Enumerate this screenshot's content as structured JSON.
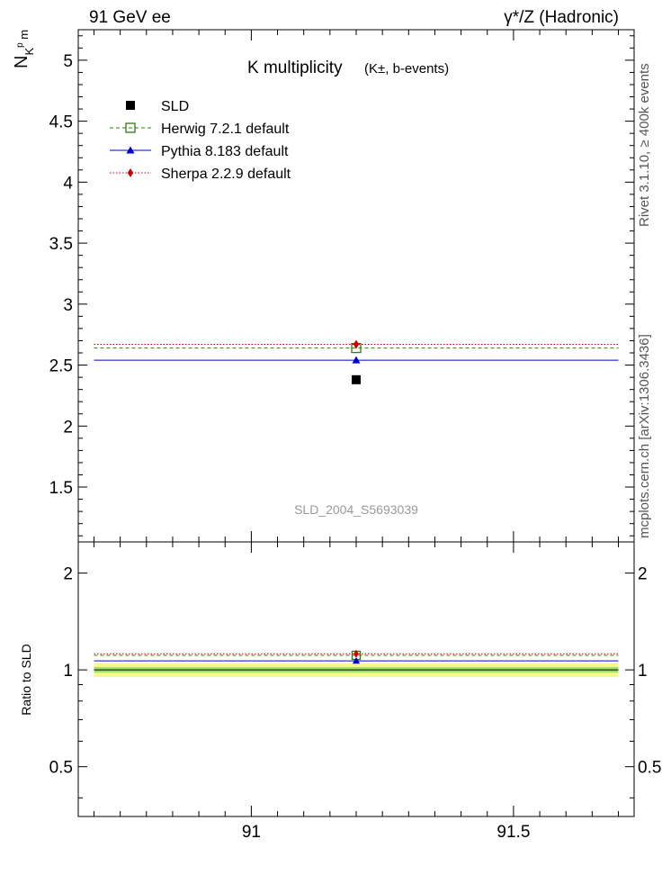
{
  "header": {
    "left": "91 GeV ee",
    "right": "γ*/Z (Hadronic)"
  },
  "side_text": {
    "rivet": "Rivet 3.1.10, ≥ 400k events",
    "mcplots": "mcplots.cern.ch [arXiv:1306.3436]"
  },
  "colors": {
    "data": "#000000",
    "herwig": "#2e7d12",
    "pythia": "#0000cc",
    "sherpa": "#cc0000",
    "band_inner": "#9be36b",
    "band_outer": "#f6f98a"
  },
  "chart_data": [
    {
      "type": "scatter",
      "panel": "main",
      "title": "K multiplicity",
      "title_suffix": "(K±, b-events)",
      "ylabel": "N_K^p_m",
      "watermark": "SLD_2004_S5693039",
      "xlim": [
        90.67,
        91.73
      ],
      "ylim": [
        1.05,
        5.25
      ],
      "yticks": [
        1.5,
        2,
        2.5,
        3,
        3.5,
        4,
        4.5,
        5
      ],
      "ytick_labels": [
        "1.5",
        "2",
        "2.5",
        "3",
        "3.5",
        "4",
        "4.5",
        "5"
      ],
      "legend_position": "top-left",
      "series": [
        {
          "name": "SLD",
          "style": "data",
          "x": [
            91.2
          ],
          "y": [
            2.38
          ],
          "xrange": [
            90.7,
            91.7
          ]
        },
        {
          "name": "Herwig 7.2.1 default",
          "style": "herwig",
          "x": [
            91.2
          ],
          "y": [
            2.64
          ],
          "xrange": [
            90.7,
            91.7
          ]
        },
        {
          "name": "Pythia 8.183 default",
          "style": "pythia",
          "x": [
            91.2
          ],
          "y": [
            2.54
          ],
          "xrange": [
            90.7,
            91.7
          ]
        },
        {
          "name": "Sherpa 2.2.9 default",
          "style": "sherpa",
          "x": [
            91.2
          ],
          "y": [
            2.67
          ],
          "xrange": [
            90.7,
            91.7
          ]
        }
      ]
    },
    {
      "type": "scatter",
      "panel": "ratio",
      "ylabel": "Ratio to SLD",
      "xlim": [
        90.67,
        91.73
      ],
      "ylim": [
        0.35,
        2.5
      ],
      "yscale": "log",
      "yticks": [
        0.5,
        1,
        2
      ],
      "ytick_labels": [
        "0.5",
        "1",
        "2"
      ],
      "xticks": [
        91,
        91.5
      ],
      "xtick_labels": [
        "91",
        "91.5"
      ],
      "band_outer": [
        0.95,
        1.05
      ],
      "band_inner": [
        0.98,
        1.02
      ],
      "series": [
        {
          "name": "Herwig 7.2.1 default",
          "style": "herwig",
          "x": [
            91.2
          ],
          "y": [
            1.11
          ]
        },
        {
          "name": "Pythia 8.183 default",
          "style": "pythia",
          "x": [
            91.2
          ],
          "y": [
            1.067
          ]
        },
        {
          "name": "Sherpa 2.2.9 default",
          "style": "sherpa",
          "x": [
            91.2
          ],
          "y": [
            1.122
          ]
        }
      ]
    }
  ]
}
